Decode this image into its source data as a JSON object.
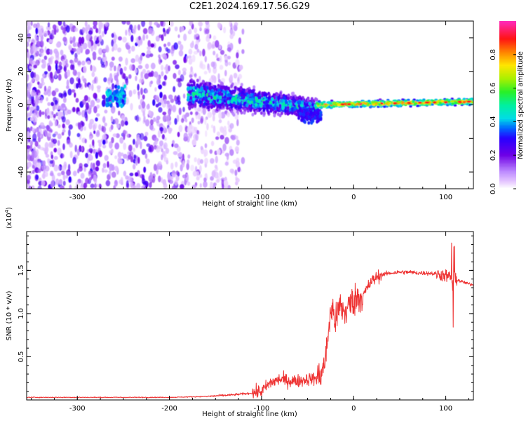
{
  "title": "C2E1.2024.169.17.56.G29",
  "chart_data": [
    {
      "type": "heatmap",
      "xlabel": "Height of straight line (km)",
      "ylabel": "Frequency (Hz)",
      "xlim": [
        -355,
        130
      ],
      "ylim": [
        -50,
        50
      ],
      "xticks": [
        -300,
        -200,
        -100,
        0,
        100
      ],
      "yticks": [
        -40,
        -20,
        0,
        20,
        40
      ],
      "colorbar": {
        "label": "Normalized spectral amplitude",
        "range": [
          0,
          1
        ],
        "ticks": [
          "0.0",
          "0.2",
          "0.4",
          "0.6",
          "0.8"
        ],
        "colormap": "gist_ncar"
      },
      "features": [
        {
          "description": "scattered low-amplitude spectral noise",
          "x": [
            -355,
            -120
          ],
          "y": [
            -50,
            50
          ],
          "amplitude": [
            0.05,
            0.3
          ]
        },
        {
          "description": "broadened signal band",
          "x": [
            -180,
            -40
          ],
          "center_hz": [
            7,
            -2
          ],
          "amplitude": [
            0.2,
            0.55
          ]
        },
        {
          "description": "narrow high-amplitude carrier line",
          "x": [
            -40,
            130
          ],
          "center_hz": [
            0,
            2
          ],
          "amplitude": [
            0.6,
            0.95
          ]
        }
      ]
    },
    {
      "type": "line",
      "xlabel": "Height of straight line (km)",
      "ylabel": "SNR (10 * v/v)",
      "y_multiplier": "(x10^4)",
      "y_multiplier_base": "(x10",
      "y_multiplier_exp": "4",
      "y_multiplier_close": ")",
      "xlim": [
        -355,
        130
      ],
      "ylim": [
        0,
        1.95
      ],
      "xticks": [
        -300,
        -200,
        -100,
        0,
        100
      ],
      "yticks": [
        "0.5",
        "1.0",
        "1.5"
      ],
      "series": [
        {
          "color": "#ee3333",
          "x": [
            -355,
            -300,
            -250,
            -200,
            -160,
            -130,
            -110,
            -100,
            -90,
            -80,
            -70,
            -60,
            -50,
            -40,
            -35,
            -30,
            -27,
            -25,
            -22,
            -20,
            -18,
            -15,
            -12,
            -10,
            -5,
            0,
            5,
            10,
            15,
            20,
            25,
            30,
            35,
            40,
            50,
            60,
            70,
            80,
            90,
            95,
            100,
            105,
            108,
            110,
            115,
            120,
            130
          ],
          "y": [
            0.03,
            0.03,
            0.03,
            0.03,
            0.04,
            0.06,
            0.08,
            0.1,
            0.2,
            0.24,
            0.22,
            0.22,
            0.24,
            0.25,
            0.3,
            0.5,
            0.85,
            1.0,
            1.05,
            0.9,
            0.95,
            1.1,
            1.05,
            1.0,
            1.1,
            1.15,
            1.2,
            1.2,
            1.3,
            1.38,
            1.42,
            1.45,
            1.46,
            1.47,
            1.48,
            1.48,
            1.47,
            1.47,
            1.46,
            1.45,
            1.44,
            1.42,
            1.35,
            1.4,
            1.38,
            1.36,
            1.33
          ]
        }
      ]
    }
  ]
}
